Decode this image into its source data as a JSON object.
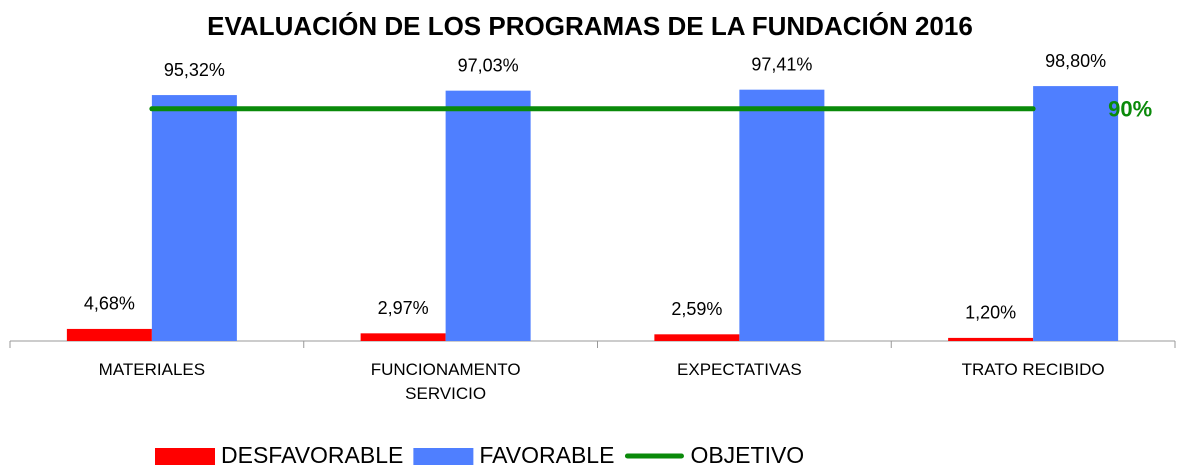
{
  "chart_data": {
    "type": "bar",
    "title": "EVALUACIÓN DE LOS PROGRAMAS DE LA FUNDACIÓN 2016",
    "categories": [
      "MATERIALES",
      "FUNCIONAMENTO SERVICIO",
      "EXPECTATIVAS",
      "TRATO RECIBIDO"
    ],
    "series": [
      {
        "name": "DESFAVORABLE",
        "color": "#ff0000",
        "values": [
          4.68,
          2.97,
          2.59,
          1.2
        ],
        "value_labels": [
          "4,68%",
          "2,97%",
          "2,59%",
          "1,20%"
        ]
      },
      {
        "name": "FAVORABLE",
        "color": "#4f7fff",
        "values": [
          95.32,
          97.03,
          97.41,
          98.8
        ],
        "value_labels": [
          "95,32%",
          "97,03%",
          "97,41%",
          "98,80%"
        ]
      },
      {
        "name": "OBJETIVO",
        "type": "line",
        "color": "#0a8a0a",
        "values": [
          90,
          90,
          90,
          90
        ],
        "value_labels": [
          null,
          null,
          null,
          "90%"
        ]
      }
    ],
    "ylim": [
      0,
      100
    ]
  }
}
